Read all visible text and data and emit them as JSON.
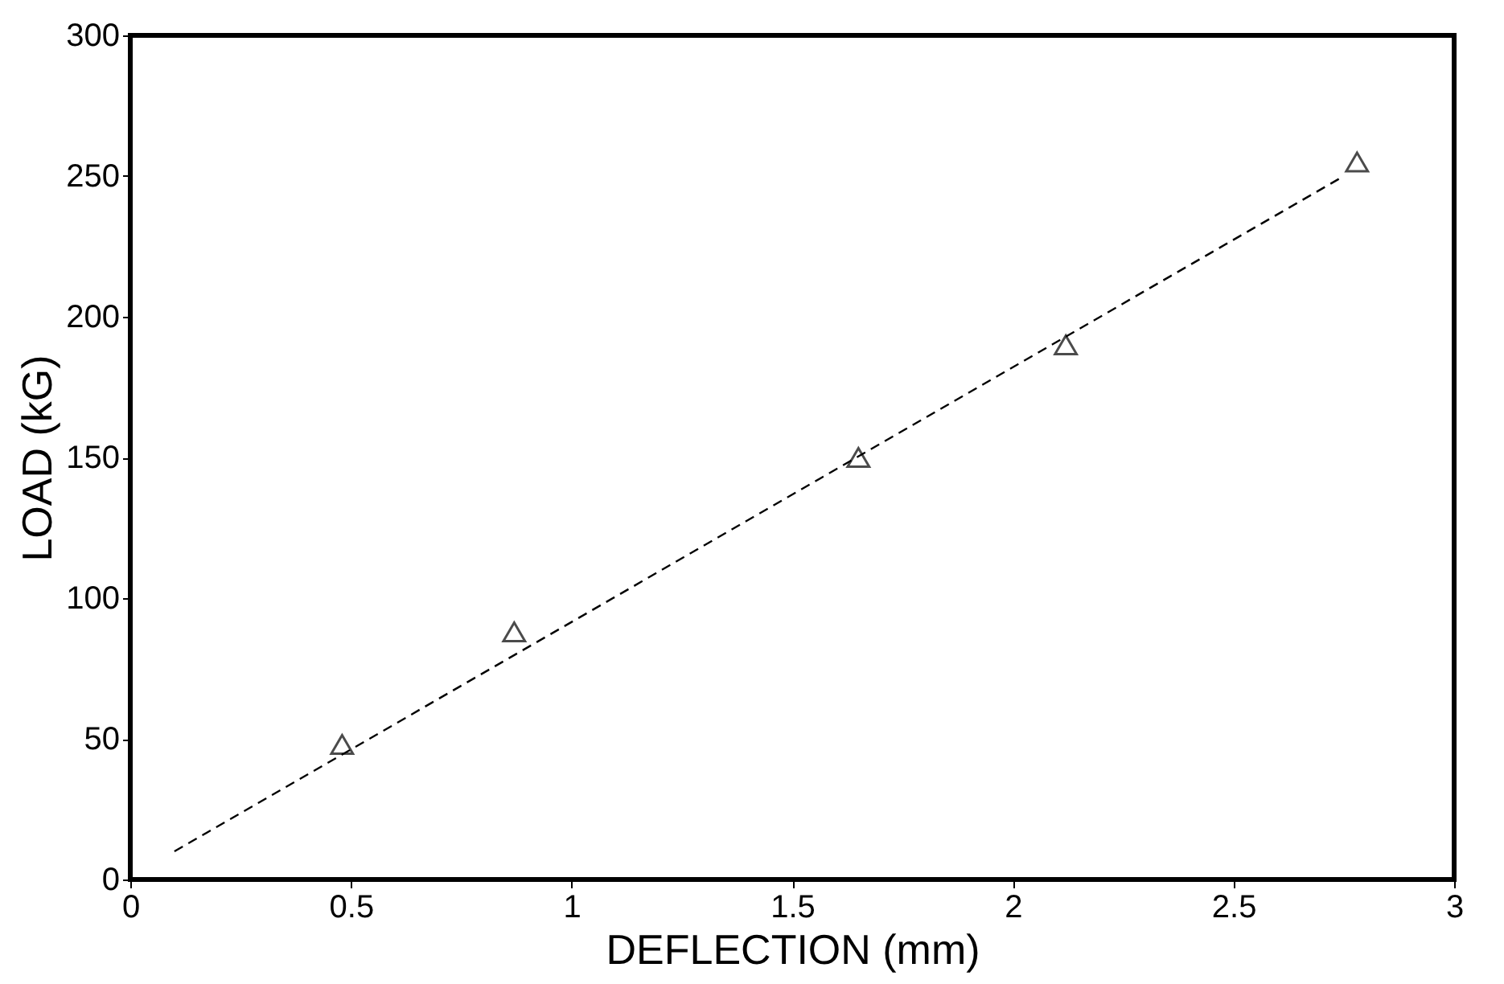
{
  "chart_data": {
    "type": "scatter",
    "xlabel": "DEFLECTION (mm)",
    "ylabel": "LOAD (kG)",
    "xlim": [
      0,
      3
    ],
    "ylim": [
      0,
      300
    ],
    "xticks": [
      0,
      0.5,
      1,
      1.5,
      2,
      2.5,
      3
    ],
    "yticks": [
      0,
      50,
      100,
      150,
      200,
      250,
      300
    ],
    "grid": false,
    "series": [
      {
        "type": "scatter",
        "color": "#000000",
        "marker": "triangle",
        "x": [
          0.48,
          0.87,
          1.65,
          2.12,
          2.78
        ],
        "values": [
          48,
          88,
          150,
          190,
          255
        ]
      },
      {
        "type": "line",
        "color": "#000000",
        "line_style": "dashed",
        "marker": "none",
        "x": [
          0.1,
          2.75
        ],
        "values": [
          10,
          250
        ]
      }
    ]
  }
}
